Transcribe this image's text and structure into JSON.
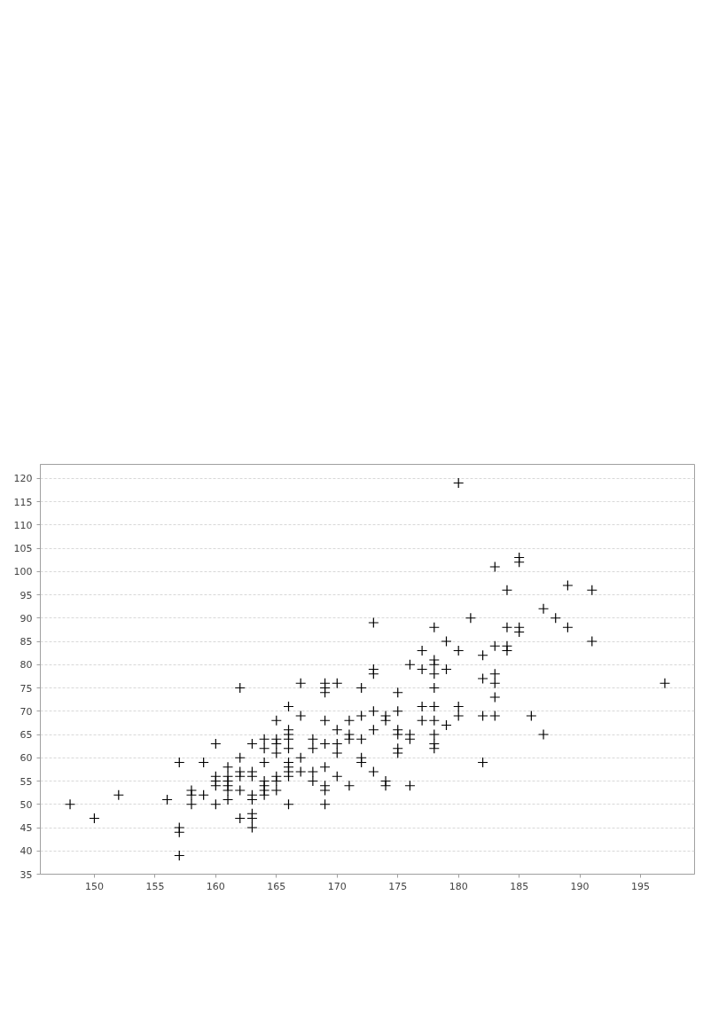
{
  "chart_data": {
    "type": "scatter",
    "series": [
      {
        "color": "#000000",
        "x": [
          148,
          150,
          152,
          156,
          157,
          157,
          157,
          157,
          158,
          158,
          158,
          159,
          159,
          160,
          160,
          160,
          160,
          160,
          161,
          161,
          161,
          161,
          161,
          161,
          162,
          162,
          162,
          162,
          162,
          162,
          163,
          163,
          163,
          163,
          163,
          163,
          163,
          163,
          164,
          164,
          164,
          164,
          164,
          164,
          164,
          165,
          165,
          165,
          165,
          165,
          165,
          165,
          166,
          166,
          166,
          166,
          166,
          166,
          166,
          166,
          166,
          166,
          167,
          167,
          167,
          167,
          168,
          168,
          168,
          168,
          169,
          169,
          169,
          169,
          169,
          169,
          169,
          169,
          169,
          170,
          170,
          170,
          170,
          170,
          171,
          171,
          171,
          171,
          172,
          172,
          172,
          172,
          172,
          173,
          173,
          173,
          173,
          173,
          173,
          174,
          174,
          174,
          174,
          175,
          175,
          175,
          175,
          175,
          175,
          176,
          176,
          176,
          176,
          177,
          177,
          177,
          177,
          178,
          178,
          178,
          178,
          178,
          178,
          178,
          178,
          178,
          178,
          179,
          179,
          179,
          180,
          180,
          180,
          180,
          181,
          182,
          182,
          182,
          182,
          183,
          183,
          183,
          183,
          183,
          183,
          184,
          184,
          184,
          184,
          185,
          185,
          185,
          185,
          186,
          187,
          187,
          188,
          189,
          189,
          191,
          191,
          197
        ],
        "values": [
          50,
          47,
          52,
          51,
          59,
          45,
          44,
          39,
          53,
          52,
          50,
          59,
          52,
          63,
          56,
          55,
          54,
          50,
          58,
          56,
          55,
          54,
          53,
          51,
          75,
          60,
          57,
          56,
          53,
          47,
          63,
          57,
          56,
          52,
          51,
          48,
          47,
          45,
          64,
          62,
          59,
          55,
          54,
          53,
          52,
          68,
          64,
          63,
          61,
          56,
          55,
          53,
          71,
          66,
          65,
          64,
          62,
          59,
          58,
          57,
          56,
          50,
          76,
          69,
          60,
          57,
          64,
          62,
          57,
          55,
          76,
          75,
          74,
          68,
          63,
          58,
          54,
          53,
          50,
          76,
          66,
          63,
          61,
          56,
          68,
          65,
          64,
          54,
          75,
          69,
          64,
          60,
          59,
          89,
          79,
          78,
          70,
          66,
          57,
          69,
          68,
          55,
          54,
          74,
          70,
          66,
          65,
          62,
          61,
          80,
          65,
          64,
          54,
          83,
          79,
          71,
          68,
          88,
          81,
          80,
          78,
          75,
          71,
          68,
          65,
          63,
          62,
          85,
          79,
          67,
          119,
          83,
          71,
          69,
          90,
          82,
          77,
          69,
          59,
          101,
          84,
          78,
          76,
          73,
          69,
          96,
          88,
          84,
          83,
          103,
          102,
          88,
          87,
          69,
          92,
          65,
          90,
          97,
          88,
          96,
          85,
          76
        ]
      }
    ],
    "marker": "cross",
    "xlim": [
      145.55,
      199.45
    ],
    "ylim": [
      35,
      123
    ],
    "xticks": [
      150,
      155,
      160,
      165,
      170,
      175,
      180,
      185,
      190,
      195
    ],
    "yticks": [
      35,
      40,
      45,
      50,
      55,
      60,
      65,
      70,
      75,
      80,
      85,
      90,
      95,
      100,
      105,
      110,
      115,
      120
    ],
    "grid": "y"
  }
}
